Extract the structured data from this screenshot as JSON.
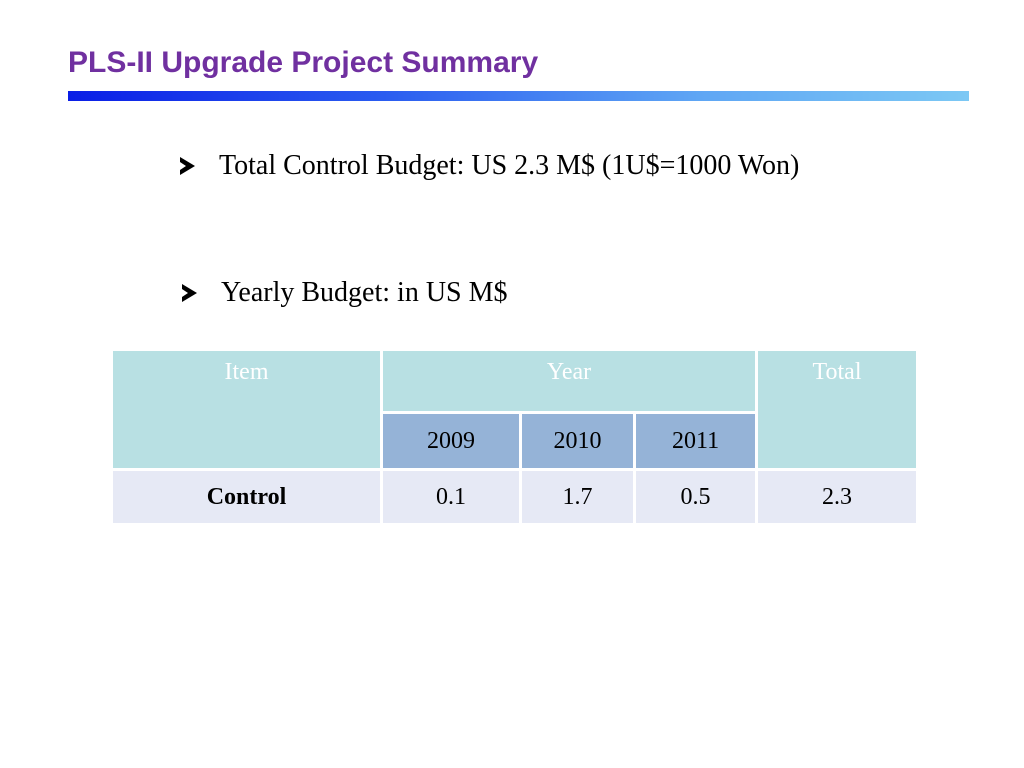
{
  "slide": {
    "title": "PLS-II Upgrade Project Summary",
    "bullets": [
      "Total Control Budget: US 2.3 M$ (1U$=1000 Won)",
      "Yearly Budget: in US  M$"
    ]
  },
  "table": {
    "headers": {
      "item": "Item",
      "year": "Year",
      "total": "Total",
      "years": [
        "2009",
        "2010",
        "2011"
      ]
    },
    "rows": [
      {
        "item": "Control",
        "values": [
          "0.1",
          "1.7",
          "0.5"
        ],
        "total": "2.3"
      }
    ]
  },
  "colors": {
    "title": "#7030a0",
    "header_bg": "#b8e0e3",
    "year_bg": "#95b3d7",
    "row_bg": "#e6e9f5"
  }
}
